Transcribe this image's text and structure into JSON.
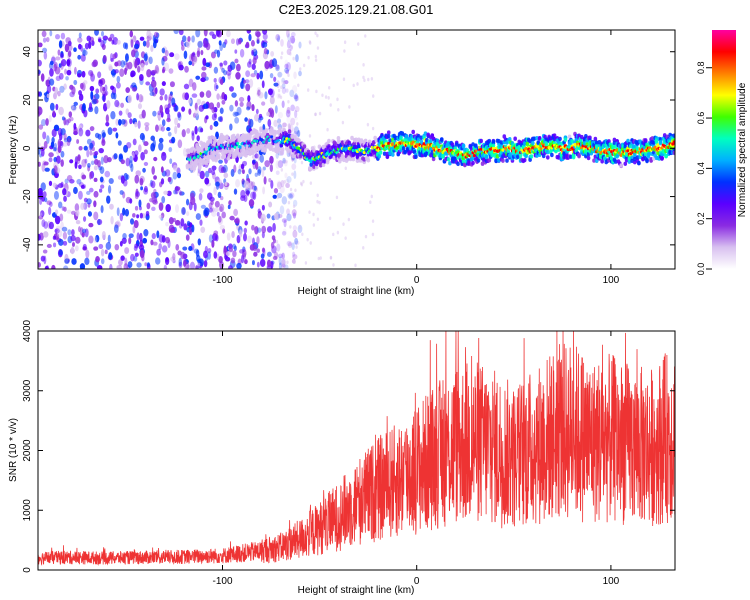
{
  "figure": {
    "title": "C2E3.2025.129.21.08.G01"
  },
  "chart_data": [
    {
      "type": "heatmap",
      "xlabel": "Height of straight line (km)",
      "ylabel": "Frequency (Hz)",
      "xlim": [
        -195,
        133
      ],
      "ylim": [
        -50,
        49
      ],
      "xticks": [
        -100,
        0,
        100
      ],
      "yticks": [
        -40,
        -20,
        0,
        20,
        40
      ],
      "grid": false,
      "colorbar": {
        "label": "Normalized spectral amplitude",
        "range": [
          0,
          0.95
        ],
        "ticks": [
          0.0,
          0.2,
          0.4,
          0.6,
          0.8
        ],
        "colormap": [
          "#ffffff",
          "#d8c0f0",
          "#8a2be2",
          "#5a00ff",
          "#0030ff",
          "#00b0ff",
          "#00ffc0",
          "#40ff00",
          "#ffff00",
          "#ff8000",
          "#ff0000",
          "#ff00a0"
        ]
      },
      "ridge": {
        "x": [
          -115,
          -105,
          -95,
          -85,
          -75,
          -65,
          -55,
          -45,
          -35,
          -25,
          -15,
          -5,
          5,
          15,
          25,
          35,
          45,
          55,
          65,
          75,
          85,
          95,
          105,
          115,
          125,
          133
        ],
        "frequency": [
          -4,
          0,
          1,
          2,
          4,
          3,
          -5,
          -2,
          0,
          -1,
          1,
          2,
          1,
          -1,
          -3,
          -1,
          0,
          -1,
          1,
          0,
          1,
          -1,
          -2,
          -1,
          0,
          2
        ]
      },
      "noise_region": {
        "x_range": [
          -195,
          -72
        ],
        "description_level": "high"
      }
    },
    {
      "type": "line",
      "xlabel": "Height of straight line (km)",
      "ylabel": "SNR (10 * v/v)",
      "xlim": [
        -195,
        133
      ],
      "ylim": [
        0,
        4000
      ],
      "xticks": [
        -100,
        0,
        100
      ],
      "yticks": [
        0,
        1000,
        2000,
        3000,
        4000
      ],
      "grid": false,
      "color": "#ee3333",
      "series": [
        {
          "x": [
            -195,
            -180,
            -160,
            -140,
            -120,
            -100,
            -90,
            -80,
            -70,
            -60,
            -50,
            -40,
            -30,
            -20,
            -10,
            0,
            10,
            20,
            30,
            40,
            50,
            60,
            70,
            80,
            90,
            100,
            110,
            120,
            133
          ],
          "values": [
            200,
            210,
            200,
            210,
            220,
            240,
            280,
            320,
            380,
            520,
            700,
            900,
            1150,
            1350,
            1500,
            1700,
            1900,
            2100,
            2150,
            2050,
            1900,
            2050,
            2250,
            2350,
            2150,
            2200,
            2100,
            2050,
            2300
          ]
        }
      ]
    }
  ]
}
